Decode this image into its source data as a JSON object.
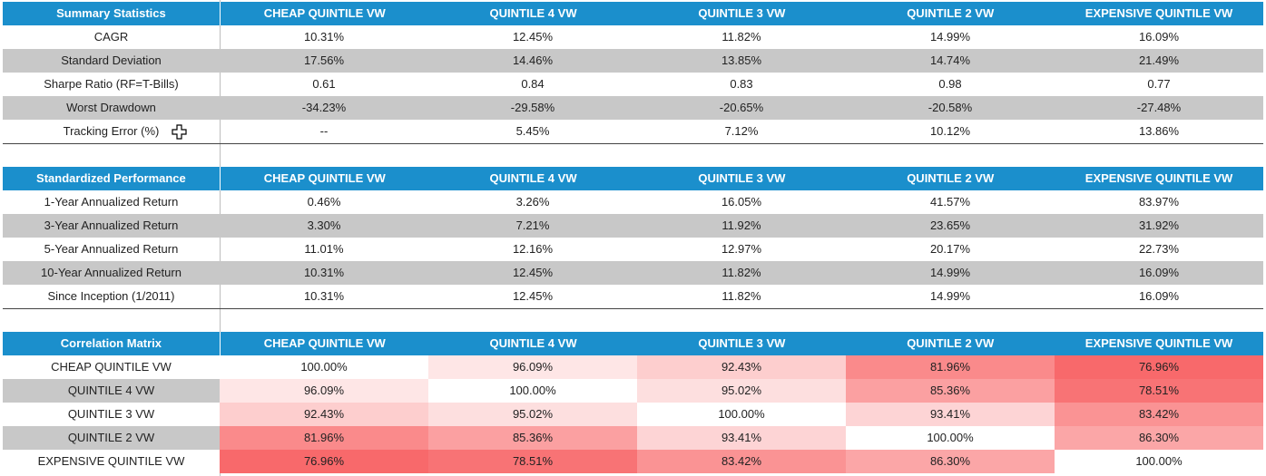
{
  "columns": [
    "CHEAP QUINTILE VW",
    "QUINTILE 4 VW",
    "QUINTILE 3 VW",
    "QUINTILE 2 VW",
    "EXPENSIVE QUINTILE VW"
  ],
  "summary": {
    "title": "Summary Statistics",
    "rows": [
      {
        "label": "CAGR",
        "values": [
          "10.31%",
          "12.45%",
          "11.82%",
          "14.99%",
          "16.09%"
        ]
      },
      {
        "label": "Standard Deviation",
        "values": [
          "17.56%",
          "14.46%",
          "13.85%",
          "14.74%",
          "21.49%"
        ]
      },
      {
        "label": "Sharpe Ratio (RF=T-Bills)",
        "values": [
          "0.61",
          "0.84",
          "0.83",
          "0.98",
          "0.77"
        ]
      },
      {
        "label": "Worst Drawdown",
        "values": [
          "-34.23%",
          "-29.58%",
          "-20.65%",
          "-20.58%",
          "-27.48%"
        ]
      },
      {
        "label": "Tracking Error (%)",
        "values": [
          "--",
          "5.45%",
          "7.12%",
          "10.12%",
          "13.86%"
        ]
      }
    ]
  },
  "performance": {
    "title": "Standardized Performance",
    "rows": [
      {
        "label": "1-Year Annualized Return",
        "values": [
          "0.46%",
          "3.26%",
          "16.05%",
          "41.57%",
          "83.97%"
        ]
      },
      {
        "label": "3-Year Annualized Return",
        "values": [
          "3.30%",
          "7.21%",
          "11.92%",
          "23.65%",
          "31.92%"
        ]
      },
      {
        "label": "5-Year Annualized Return",
        "values": [
          "11.01%",
          "12.16%",
          "12.97%",
          "20.17%",
          "22.73%"
        ]
      },
      {
        "label": "10-Year Annualized Return",
        "values": [
          "10.31%",
          "12.45%",
          "11.82%",
          "14.99%",
          "16.09%"
        ]
      },
      {
        "label": "Since Inception (1/2011)",
        "values": [
          "10.31%",
          "12.45%",
          "11.82%",
          "14.99%",
          "16.09%"
        ]
      }
    ]
  },
  "correlation": {
    "title": "Correlation Matrix",
    "heat_colors": {
      "high": "#ffffff",
      "low": "#f8696b"
    },
    "rows": [
      {
        "label": "CHEAP QUINTILE VW",
        "values": [
          "100.00%",
          "96.09%",
          "92.43%",
          "81.96%",
          "76.96%"
        ],
        "numbers": [
          100.0,
          96.09,
          92.43,
          81.96,
          76.96
        ]
      },
      {
        "label": "QUINTILE 4 VW",
        "values": [
          "96.09%",
          "100.00%",
          "95.02%",
          "85.36%",
          "78.51%"
        ],
        "numbers": [
          96.09,
          100.0,
          95.02,
          85.36,
          78.51
        ]
      },
      {
        "label": "QUINTILE 3 VW",
        "values": [
          "92.43%",
          "95.02%",
          "100.00%",
          "93.41%",
          "83.42%"
        ],
        "numbers": [
          92.43,
          95.02,
          100.0,
          93.41,
          83.42
        ]
      },
      {
        "label": "QUINTILE 2 VW",
        "values": [
          "81.96%",
          "85.36%",
          "93.41%",
          "100.00%",
          "86.30%"
        ],
        "numbers": [
          81.96,
          85.36,
          93.41,
          100.0,
          86.3
        ]
      },
      {
        "label": "EXPENSIVE QUINTILE VW",
        "values": [
          "76.96%",
          "78.51%",
          "83.42%",
          "86.30%",
          "100.00%"
        ],
        "numbers": [
          76.96,
          78.51,
          83.42,
          86.3,
          100.0
        ]
      }
    ]
  },
  "icons": {
    "cursor": "cell-select-cursor-icon"
  }
}
